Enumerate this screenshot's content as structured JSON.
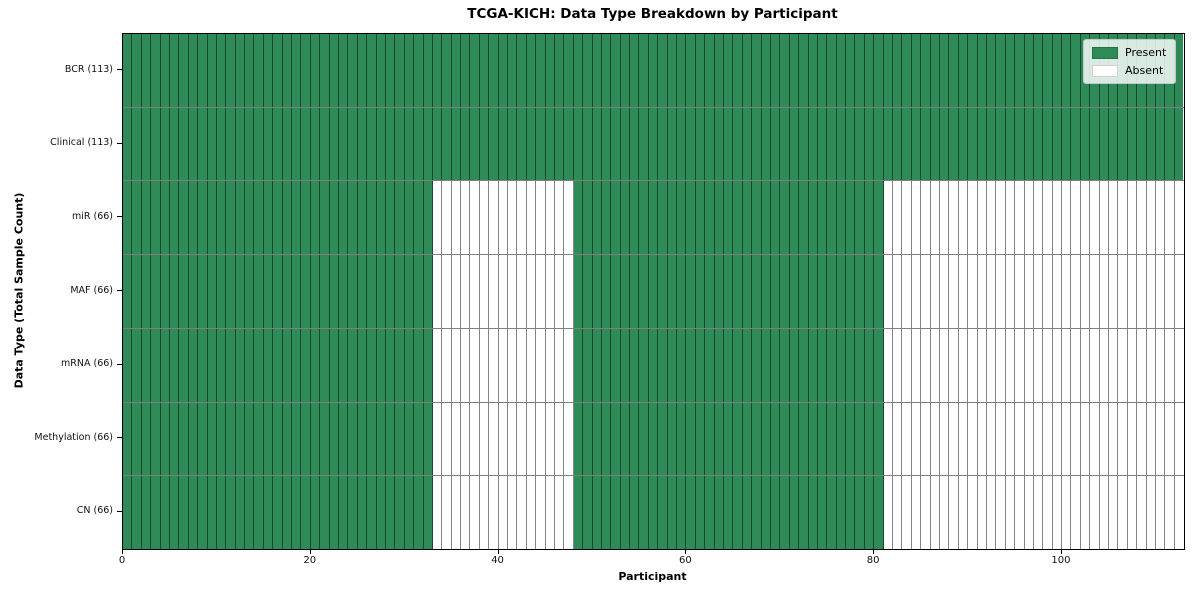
{
  "figure": {
    "title": "TCGA-KICH: Data Type Breakdown by Participant",
    "xlabel": "Participant",
    "ylabel": "Data Type (Total Sample Count)"
  },
  "legend": {
    "items": [
      {
        "label": "Present",
        "color": "#2e8b57"
      },
      {
        "label": "Absent",
        "color": "#ffffff"
      }
    ]
  },
  "chart_data": {
    "type": "heatmap",
    "title": "TCGA-KICH: Data Type Breakdown by Participant",
    "xlabel": "Participant",
    "ylabel": "Data Type (Total Sample Count)",
    "n_participants": 113,
    "xlim": [
      0,
      113
    ],
    "x_ticks": [
      0,
      20,
      40,
      60,
      80,
      100
    ],
    "grid": false,
    "legend_position": "upper right",
    "present_color": "#2e8b57",
    "absent_color": "#ffffff",
    "cell_edge_color": "rgba(0,0,0,0.48)",
    "rows": [
      {
        "label": "BCR (113)",
        "total": 113,
        "present_ranges": [
          [
            0,
            113
          ]
        ]
      },
      {
        "label": "Clinical (113)",
        "total": 113,
        "present_ranges": [
          [
            0,
            113
          ]
        ]
      },
      {
        "label": "miR (66)",
        "total": 66,
        "present_ranges": [
          [
            0,
            33
          ],
          [
            48,
            81
          ]
        ]
      },
      {
        "label": "MAF (66)",
        "total": 66,
        "present_ranges": [
          [
            0,
            33
          ],
          [
            48,
            81
          ]
        ]
      },
      {
        "label": "mRNA (66)",
        "total": 66,
        "present_ranges": [
          [
            0,
            33
          ],
          [
            48,
            81
          ]
        ]
      },
      {
        "label": "Methylation (66)",
        "total": 66,
        "present_ranges": [
          [
            0,
            33
          ],
          [
            48,
            81
          ]
        ]
      },
      {
        "label": "CN (66)",
        "total": 66,
        "present_ranges": [
          [
            0,
            33
          ],
          [
            48,
            81
          ]
        ]
      }
    ]
  }
}
